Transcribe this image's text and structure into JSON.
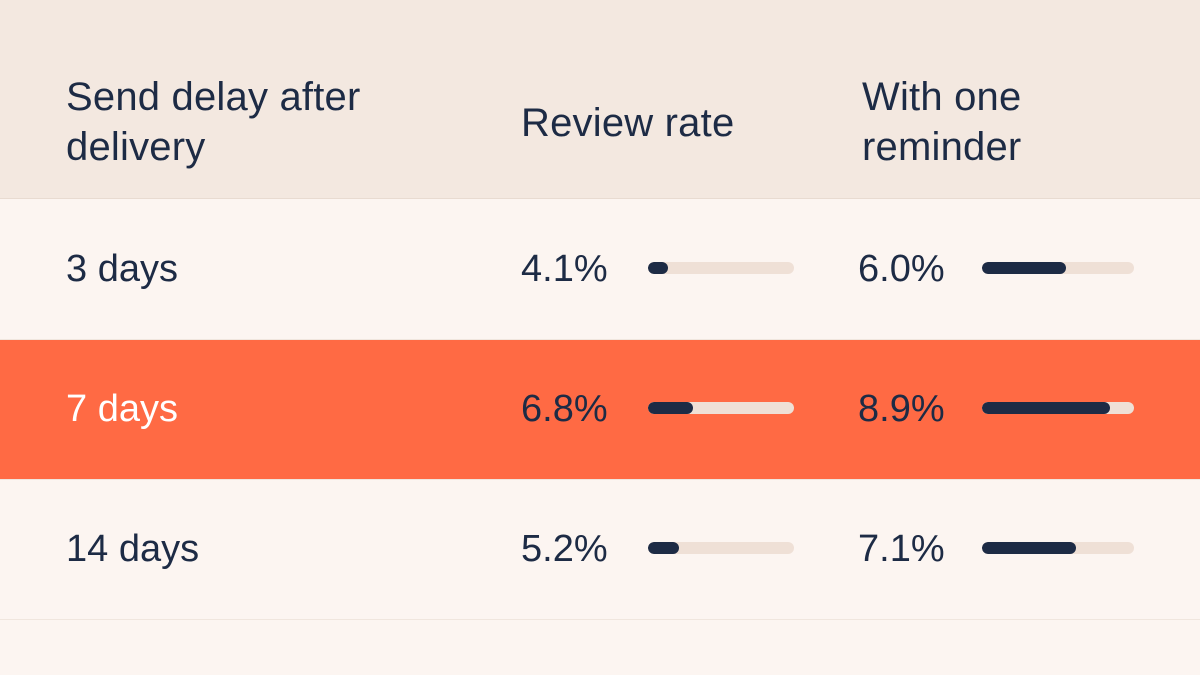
{
  "header": {
    "delay_label": "Send delay after delivery",
    "rate_label": "Review rate",
    "reminder_label": "With one reminder"
  },
  "colors": {
    "background": "#fcf5f1",
    "header_background": "#f3e8e0",
    "highlight": "#ff6a44",
    "bar_fill": "#1d2b45",
    "bar_track": "#efe0d6",
    "text": "#1d2b45"
  },
  "rows": [
    {
      "delay": "3 days",
      "review_rate": "4.1%",
      "with_reminder": "6.0%",
      "highlighted": false
    },
    {
      "delay": "7 days",
      "review_rate": "6.8%",
      "with_reminder": "8.9%",
      "highlighted": true
    },
    {
      "delay": "14 days",
      "review_rate": "5.2%",
      "with_reminder": "7.1%",
      "highlighted": false
    }
  ],
  "chart_data": {
    "type": "table",
    "columns": [
      "Send delay after delivery",
      "Review rate",
      "With one reminder"
    ],
    "categories": [
      "3 days",
      "7 days",
      "14 days"
    ],
    "series": [
      {
        "name": "Review rate",
        "values": [
          4.1,
          6.8,
          5.2
        ]
      },
      {
        "name": "With one reminder",
        "values": [
          6.0,
          8.9,
          7.1
        ]
      }
    ],
    "bar_fill_fraction": {
      "Review rate": [
        0.14,
        0.31,
        0.21
      ],
      "With one reminder": [
        0.55,
        0.84,
        0.62
      ]
    },
    "highlighted_category": "7 days"
  }
}
